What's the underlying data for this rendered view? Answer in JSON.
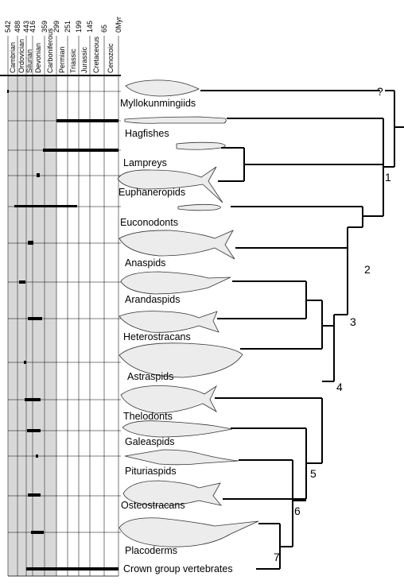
{
  "timescale": {
    "ages": [
      "542",
      "488",
      "443",
      "416",
      "359",
      "299",
      "251",
      "199",
      "145",
      "65",
      "0Myr"
    ],
    "periods": [
      "Cambrian",
      "Ordovician",
      "Silurian",
      "Devonian",
      "Carboniferous",
      "Permian",
      "Triassic",
      "Jurassic",
      "Cretaceous",
      "Cenozoic"
    ]
  },
  "taxa": [
    "Myllokunmingiids",
    "Hagfishes",
    "Lampreys",
    "Euphaneropids",
    "Euconodonts",
    "Anaspids",
    "Arandaspids",
    "Heterostracans",
    "Astraspids",
    "Thelodonts",
    "Galeaspids",
    "Pituriaspids",
    "Osteostracans",
    "Placoderms",
    "Crown group vertebrates"
  ],
  "nodes": {
    "unresolved": "?",
    "n1": "1",
    "n2": "2",
    "n3": "3",
    "n4": "4",
    "n5": "5",
    "n6": "6",
    "n7": "7"
  },
  "colors": {
    "shade": "#d8d8d8",
    "ink": "#000000",
    "grid": "#555555"
  },
  "icons": [
    "fish-silhouette"
  ]
}
